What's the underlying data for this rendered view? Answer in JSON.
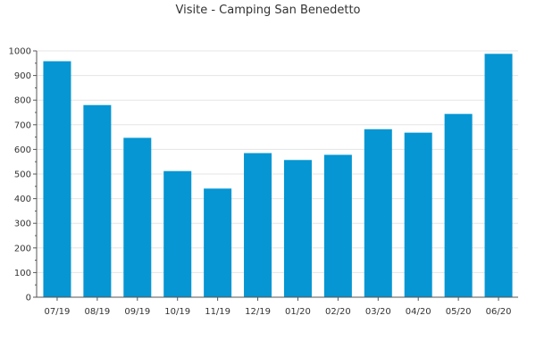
{
  "chart_data": {
    "type": "bar",
    "title": "Visite - Camping San Benedetto",
    "xlabel": "",
    "ylabel": "",
    "categories": [
      "07/19",
      "08/19",
      "09/19",
      "10/19",
      "11/19",
      "12/19",
      "01/20",
      "02/20",
      "03/20",
      "04/20",
      "05/20",
      "06/20"
    ],
    "values": [
      958,
      780,
      647,
      512,
      441,
      585,
      557,
      578,
      682,
      668,
      744,
      988
    ],
    "ylim": [
      0,
      1000
    ],
    "yticks": [
      0,
      100,
      200,
      300,
      400,
      500,
      600,
      700,
      800,
      900,
      1000
    ],
    "grid": true,
    "legend": "none",
    "colors": {
      "bar": "#0596d3",
      "grid": "#e5e5e5",
      "axis": "#555555"
    }
  }
}
